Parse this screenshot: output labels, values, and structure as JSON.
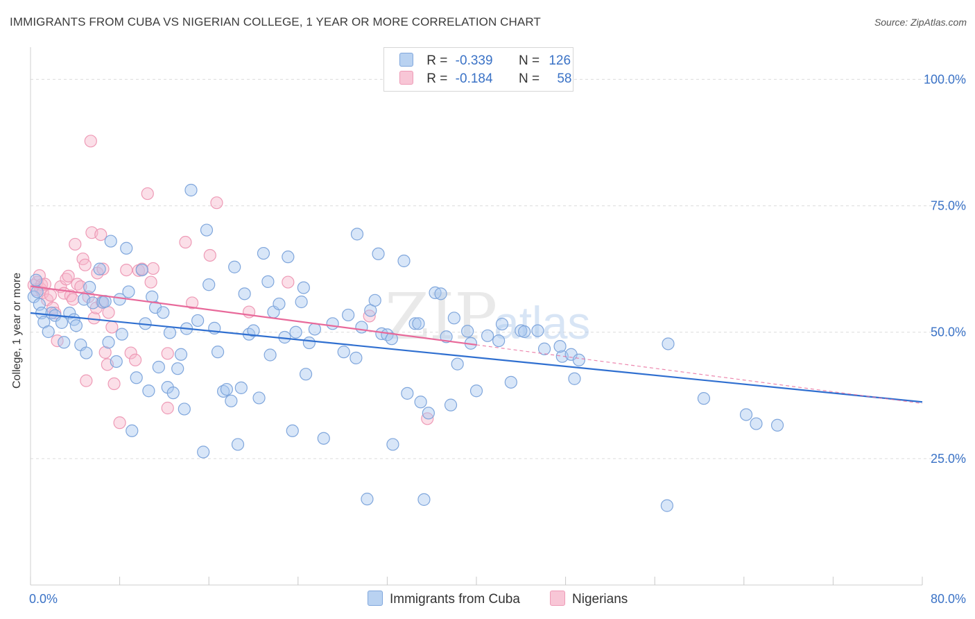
{
  "title": "IMMIGRANTS FROM CUBA VS NIGERIAN COLLEGE, 1 YEAR OR MORE CORRELATION CHART",
  "source": "Source: ZipAtlas.com",
  "watermark": {
    "zip": "ZIP",
    "atlas": "atlas"
  },
  "legend": {
    "r_label": "R =",
    "n_label": "N =",
    "series1": {
      "r": "-0.339",
      "n": "126"
    },
    "series2": {
      "r": "-0.184",
      "n": "58"
    }
  },
  "bottom_legend": {
    "series1": "Immigrants from Cuba",
    "series2": "Nigerians"
  },
  "colors": {
    "blue_fill": "#a9c8ef",
    "blue_stroke": "#7fa6dc",
    "blue_line": "#2f6fd0",
    "pink_fill": "#f6b9cd",
    "pink_stroke": "#ee9ab6",
    "pink_line": "#e8699a",
    "tick_text": "#3a72c6",
    "grid": "#dcdcdc"
  },
  "chart_data": {
    "type": "scatter",
    "title": "IMMIGRANTS FROM CUBA VS NIGERIAN COLLEGE, 1 YEAR OR MORE CORRELATION CHART",
    "xlabel": "",
    "ylabel": "College, 1 year or more",
    "xlim": [
      0,
      80
    ],
    "ylim": [
      0,
      105
    ],
    "x_tick_labels": [
      "0.0%",
      "80.0%"
    ],
    "y_ticks": [
      25,
      50,
      75,
      100
    ],
    "y_tick_labels": [
      "25.0%",
      "50.0%",
      "75.0%",
      "100.0%"
    ],
    "x_minor_ticks": [
      0,
      8,
      16,
      24,
      32,
      40,
      48,
      56,
      64,
      72,
      80
    ],
    "series": [
      {
        "name": "Immigrants from Cuba",
        "r": -0.339,
        "n": 126,
        "trend": {
          "x0": 0,
          "y0": 53.8,
          "x1": 80,
          "y1": 36.2,
          "dash_from": null
        },
        "points": [
          [
            0.3,
            57.0
          ],
          [
            0.5,
            60.3
          ],
          [
            0.6,
            58.0
          ],
          [
            0.8,
            55.5
          ],
          [
            1.0,
            53.8
          ],
          [
            1.2,
            52.0
          ],
          [
            1.6,
            50.1
          ],
          [
            1.9,
            53.8
          ],
          [
            2.2,
            53.3
          ],
          [
            2.8,
            51.9
          ],
          [
            3.0,
            48.0
          ],
          [
            3.5,
            53.8
          ],
          [
            3.9,
            52.5
          ],
          [
            4.1,
            51.3
          ],
          [
            4.5,
            47.5
          ],
          [
            4.8,
            56.5
          ],
          [
            5.0,
            45.9
          ],
          [
            5.3,
            58.9
          ],
          [
            5.6,
            55.8
          ],
          [
            6.2,
            62.5
          ],
          [
            6.5,
            55.9
          ],
          [
            6.7,
            56.1
          ],
          [
            7.0,
            48.0
          ],
          [
            7.2,
            68.0
          ],
          [
            7.7,
            44.2
          ],
          [
            8.0,
            56.5
          ],
          [
            8.2,
            49.6
          ],
          [
            8.6,
            66.6
          ],
          [
            8.8,
            58.0
          ],
          [
            9.1,
            30.5
          ],
          [
            9.5,
            41.0
          ],
          [
            10.0,
            62.3
          ],
          [
            10.3,
            51.7
          ],
          [
            10.6,
            38.4
          ],
          [
            10.9,
            57.0
          ],
          [
            11.2,
            54.9
          ],
          [
            11.5,
            43.1
          ],
          [
            11.9,
            53.9
          ],
          [
            12.3,
            39.1
          ],
          [
            12.5,
            49.9
          ],
          [
            12.8,
            38.0
          ],
          [
            13.2,
            42.8
          ],
          [
            13.5,
            45.6
          ],
          [
            13.8,
            34.8
          ],
          [
            14.0,
            50.7
          ],
          [
            14.4,
            78.1
          ],
          [
            15.0,
            52.3
          ],
          [
            15.5,
            26.3
          ],
          [
            15.8,
            70.2
          ],
          [
            16.0,
            59.4
          ],
          [
            16.5,
            50.8
          ],
          [
            16.8,
            46.1
          ],
          [
            17.3,
            38.3
          ],
          [
            17.6,
            38.7
          ],
          [
            18.0,
            36.4
          ],
          [
            18.3,
            62.9
          ],
          [
            18.6,
            27.8
          ],
          [
            18.9,
            39.0
          ],
          [
            19.2,
            57.6
          ],
          [
            19.6,
            49.6
          ],
          [
            20.0,
            50.3
          ],
          [
            20.5,
            37.0
          ],
          [
            20.9,
            65.6
          ],
          [
            21.3,
            60.0
          ],
          [
            21.5,
            45.5
          ],
          [
            21.8,
            54.0
          ],
          [
            22.3,
            55.6
          ],
          [
            22.8,
            49.0
          ],
          [
            23.1,
            64.9
          ],
          [
            23.5,
            30.5
          ],
          [
            23.8,
            50.0
          ],
          [
            24.3,
            56.0
          ],
          [
            24.5,
            58.8
          ],
          [
            24.7,
            41.7
          ],
          [
            25.0,
            47.9
          ],
          [
            25.5,
            50.6
          ],
          [
            26.3,
            29.0
          ],
          [
            27.1,
            51.7
          ],
          [
            28.1,
            46.1
          ],
          [
            28.5,
            53.4
          ],
          [
            29.2,
            44.9
          ],
          [
            29.3,
            69.4
          ],
          [
            30.2,
            17.0
          ],
          [
            30.5,
            54.3
          ],
          [
            30.9,
            56.3
          ],
          [
            31.2,
            65.5
          ],
          [
            31.5,
            49.7
          ],
          [
            32.0,
            49.5
          ],
          [
            32.4,
            48.7
          ],
          [
            32.5,
            27.8
          ],
          [
            33.5,
            64.1
          ],
          [
            33.8,
            37.9
          ],
          [
            34.5,
            51.7
          ],
          [
            34.8,
            51.7
          ],
          [
            35.0,
            36.2
          ],
          [
            35.3,
            16.9
          ],
          [
            35.7,
            34.0
          ],
          [
            36.3,
            57.8
          ],
          [
            36.8,
            57.6
          ],
          [
            37.3,
            49.1
          ],
          [
            37.7,
            35.6
          ],
          [
            38.0,
            52.8
          ],
          [
            38.3,
            43.7
          ],
          [
            39.2,
            50.2
          ],
          [
            39.5,
            47.8
          ],
          [
            40.0,
            38.4
          ],
          [
            41.0,
            49.3
          ],
          [
            42.0,
            48.3
          ],
          [
            42.3,
            51.6
          ],
          [
            43.1,
            40.1
          ],
          [
            44.0,
            50.3
          ],
          [
            44.3,
            50.1
          ],
          [
            45.5,
            50.3
          ],
          [
            46.1,
            46.7
          ],
          [
            47.7,
            45.2
          ],
          [
            48.5,
            45.6
          ],
          [
            48.8,
            40.8
          ],
          [
            49.2,
            44.5
          ],
          [
            57.1,
            15.7
          ],
          [
            57.2,
            47.7
          ],
          [
            60.4,
            36.9
          ],
          [
            64.2,
            33.7
          ],
          [
            65.1,
            31.9
          ],
          [
            67.0,
            31.6
          ],
          [
            47.5,
            47.2
          ],
          [
            29.7,
            51.0
          ]
        ]
      },
      {
        "name": "Nigerians",
        "r": -0.184,
        "n": 58,
        "trend": {
          "x0": 0,
          "y0": 59.1,
          "x1": 80,
          "y1": 35.9,
          "dash_from": 40
        },
        "points": [
          [
            0.3,
            59.3
          ],
          [
            0.5,
            58.4
          ],
          [
            0.6,
            59.9
          ],
          [
            0.8,
            61.2
          ],
          [
            0.9,
            58.6
          ],
          [
            1.0,
            59.4
          ],
          [
            1.1,
            57.8
          ],
          [
            1.3,
            59.5
          ],
          [
            1.5,
            56.4
          ],
          [
            1.8,
            57.3
          ],
          [
            2.0,
            54.8
          ],
          [
            2.2,
            53.8
          ],
          [
            2.4,
            48.3
          ],
          [
            2.7,
            59.0
          ],
          [
            3.0,
            57.7
          ],
          [
            3.2,
            60.5
          ],
          [
            3.4,
            61.1
          ],
          [
            3.6,
            57.2
          ],
          [
            3.8,
            56.5
          ],
          [
            4.0,
            67.4
          ],
          [
            4.2,
            59.5
          ],
          [
            4.5,
            59.0
          ],
          [
            4.7,
            64.5
          ],
          [
            4.9,
            63.3
          ],
          [
            5.0,
            40.4
          ],
          [
            5.2,
            57.0
          ],
          [
            5.4,
            87.8
          ],
          [
            5.5,
            69.7
          ],
          [
            5.7,
            52.8
          ],
          [
            5.9,
            54.8
          ],
          [
            6.0,
            61.7
          ],
          [
            6.3,
            69.3
          ],
          [
            6.4,
            56.0
          ],
          [
            6.5,
            62.5
          ],
          [
            6.7,
            46.0
          ],
          [
            6.9,
            43.6
          ],
          [
            7.0,
            53.9
          ],
          [
            7.3,
            51.0
          ],
          [
            7.5,
            39.8
          ],
          [
            8.0,
            32.1
          ],
          [
            8.6,
            62.3
          ],
          [
            9.0,
            45.9
          ],
          [
            9.4,
            44.5
          ],
          [
            9.7,
            62.2
          ],
          [
            10.0,
            62.5
          ],
          [
            10.5,
            77.4
          ],
          [
            10.8,
            59.9
          ],
          [
            11.0,
            62.6
          ],
          [
            12.3,
            45.8
          ],
          [
            12.3,
            35.0
          ],
          [
            13.9,
            67.8
          ],
          [
            14.5,
            55.8
          ],
          [
            16.1,
            65.2
          ],
          [
            16.7,
            75.6
          ],
          [
            19.6,
            54.0
          ],
          [
            23.1,
            59.9
          ],
          [
            35.6,
            32.9
          ],
          [
            30.4,
            53.2
          ]
        ]
      }
    ]
  }
}
